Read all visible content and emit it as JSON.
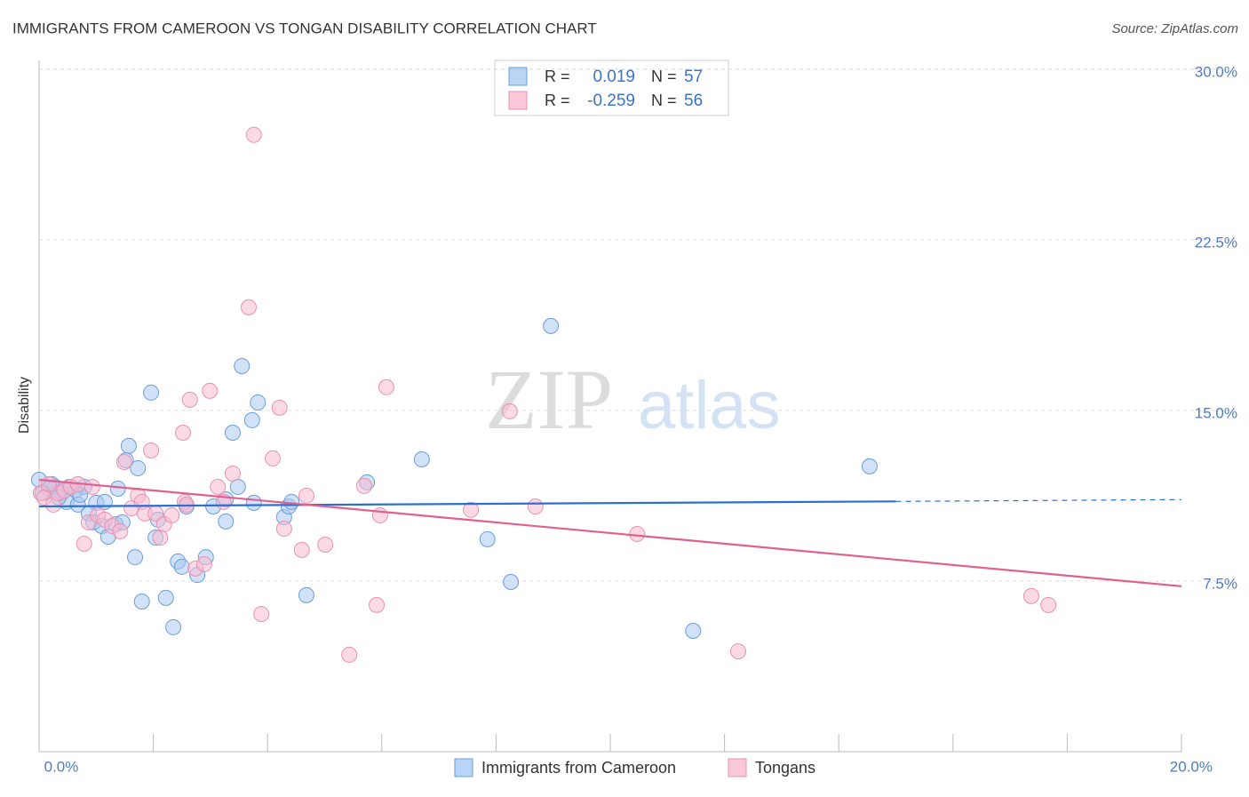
{
  "chart_data": {
    "type": "scatter",
    "title": "IMMIGRANTS FROM CAMEROON VS TONGAN DISABILITY CORRELATION CHART",
    "source": "Source: ZipAtlas.com",
    "y_label": "Disability",
    "watermark": [
      "ZIP",
      "atlas"
    ],
    "stat_labels": [
      "R =",
      "N ="
    ],
    "xlim": [
      0,
      20
    ],
    "ylim": [
      0,
      30.5
    ],
    "xticks": [
      {
        "value": 0,
        "label": "0.0%"
      },
      {
        "value": 20,
        "label": "20.0%"
      }
    ],
    "xminor_ticks": [
      2,
      4,
      6,
      8,
      10,
      12,
      14,
      16,
      18
    ],
    "yticks": [
      {
        "value": 7.5,
        "label": "7.5%"
      },
      {
        "value": 15,
        "label": "15.0%"
      },
      {
        "value": 22.5,
        "label": "22.5%"
      },
      {
        "value": 30,
        "label": "30.0%"
      }
    ],
    "grid": true,
    "series": [
      {
        "name": "Immigrants from Cameroon",
        "color": "#6a9fd8",
        "fill": "#a9c9f2",
        "line_color": "#2d6fd0",
        "text_color": "#3b74c9",
        "r": 0.019,
        "n": 57,
        "x": [
          0.0,
          0.17,
          0.28,
          0.4,
          0.53,
          0.64,
          0.79,
          0.48,
          0.68,
          1.0,
          1.15,
          0.87,
          0.95,
          1.1,
          1.21,
          1.34,
          1.46,
          1.38,
          1.57,
          1.52,
          1.73,
          1.96,
          1.68,
          1.8,
          2.04,
          2.08,
          2.22,
          2.35,
          2.43,
          2.5,
          2.58,
          2.77,
          2.92,
          3.05,
          3.27,
          3.27,
          3.39,
          3.48,
          3.55,
          3.73,
          3.76,
          3.83,
          4.29,
          4.37,
          4.42,
          4.68,
          5.74,
          6.7,
          7.85,
          8.26,
          8.96,
          11.45,
          14.54,
          0.34,
          0.22,
          0.06,
          0.72
        ],
        "values": [
          11.95,
          11.56,
          11.64,
          11.37,
          11.64,
          11.48,
          11.64,
          10.98,
          10.86,
          10.94,
          10.98,
          10.47,
          10.08,
          9.92,
          9.45,
          10.0,
          10.08,
          11.56,
          13.44,
          12.81,
          12.46,
          15.78,
          8.55,
          6.6,
          9.41,
          10.2,
          6.76,
          5.47,
          8.36,
          8.13,
          10.78,
          7.77,
          8.55,
          10.78,
          10.12,
          11.09,
          14.02,
          11.64,
          16.95,
          14.57,
          10.94,
          15.35,
          10.31,
          10.78,
          10.98,
          6.88,
          11.84,
          12.85,
          9.34,
          7.46,
          18.71,
          5.31,
          12.54,
          11.17,
          11.76,
          11.37,
          11.29
        ],
        "trend": {
          "x": [
            0,
            15
          ],
          "y": [
            10.78,
            11.0
          ]
        },
        "trend_dashed": {
          "x": [
            15,
            20
          ],
          "y": [
            11.0,
            11.08
          ]
        }
      },
      {
        "name": "Tongans",
        "color": "#e891b0",
        "fill": "#f7bcd0",
        "line_color": "#e0608f",
        "text_color": "#3b74c9",
        "r": -0.259,
        "n": 56,
        "x": [
          0.03,
          0.09,
          0.25,
          0.33,
          0.44,
          0.56,
          0.68,
          0.79,
          0.87,
          0.93,
          1.03,
          1.15,
          1.28,
          1.42,
          1.49,
          1.62,
          1.73,
          1.8,
          1.85,
          1.96,
          2.04,
          2.12,
          2.19,
          2.32,
          2.52,
          2.55,
          2.58,
          2.64,
          2.74,
          2.89,
          2.99,
          3.13,
          3.23,
          3.39,
          3.67,
          3.76,
          3.89,
          4.09,
          4.21,
          4.29,
          4.6,
          4.68,
          5.01,
          5.43,
          5.69,
          5.91,
          5.97,
          6.08,
          7.56,
          8.24,
          8.69,
          10.47,
          12.24,
          17.37,
          17.67,
          0.17
        ],
        "values": [
          11.37,
          11.17,
          10.86,
          11.37,
          11.48,
          11.64,
          11.76,
          9.14,
          10.08,
          11.64,
          10.39,
          10.2,
          9.92,
          9.69,
          12.73,
          10.7,
          11.25,
          10.98,
          10.47,
          13.24,
          10.47,
          9.41,
          10.0,
          10.39,
          14.02,
          10.98,
          10.86,
          15.47,
          8.05,
          8.24,
          15.86,
          11.64,
          10.98,
          12.23,
          19.53,
          27.11,
          6.05,
          12.89,
          15.12,
          9.8,
          8.87,
          11.25,
          9.1,
          4.26,
          11.68,
          6.45,
          10.39,
          16.02,
          10.63,
          14.96,
          10.78,
          9.57,
          4.41,
          6.84,
          6.45,
          11.76
        ],
        "trend": {
          "x": [
            0,
            20
          ],
          "y": [
            11.95,
            7.27
          ]
        }
      }
    ]
  }
}
